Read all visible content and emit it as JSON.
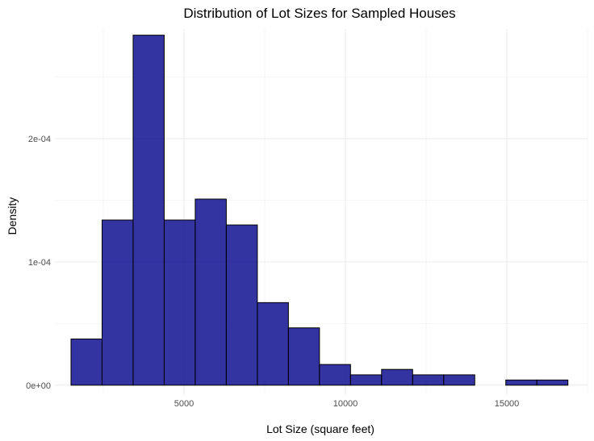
{
  "chart_data": {
    "type": "histogram",
    "title": "Distribution of Lot Sizes for Sampled Houses",
    "xlabel": "Lot Size (square feet)",
    "ylabel": "Density",
    "xlim": [
      1000,
      17500
    ],
    "ylim": [
      -8e-06,
      0.000289
    ],
    "x_ticks": [
      5000,
      10000,
      15000
    ],
    "x_tick_labels": [
      "5000",
      "10000",
      "15000"
    ],
    "y_ticks": [
      0,
      0.0001,
      0.0002
    ],
    "y_tick_labels": [
      "0e+00",
      "1e-04",
      "2e-04"
    ],
    "grid": true,
    "bar_fill": "#00008b",
    "bar_fill_opacity": 0.8,
    "bar_stroke": "#000000",
    "bins": [
      {
        "x0": 1500,
        "x1": 2462,
        "density": 3.75e-05
      },
      {
        "x0": 2462,
        "x1": 3424,
        "density": 0.000134
      },
      {
        "x0": 3424,
        "x1": 4386,
        "density": 0.000284
      },
      {
        "x0": 4386,
        "x1": 5348,
        "density": 0.000134
      },
      {
        "x0": 5348,
        "x1": 6310,
        "density": 0.000151
      },
      {
        "x0": 6310,
        "x1": 7272,
        "density": 0.00013
      },
      {
        "x0": 7272,
        "x1": 8234,
        "density": 6.7e-05
      },
      {
        "x0": 8234,
        "x1": 9196,
        "density": 4.65e-05
      },
      {
        "x0": 9196,
        "x1": 10158,
        "density": 1.68e-05
      },
      {
        "x0": 10158,
        "x1": 11120,
        "density": 8.4e-06
      },
      {
        "x0": 11120,
        "x1": 12082,
        "density": 1.28e-05
      },
      {
        "x0": 12082,
        "x1": 13044,
        "density": 8.4e-06
      },
      {
        "x0": 13044,
        "x1": 14006,
        "density": 8.4e-06
      },
      {
        "x0": 14006,
        "x1": 14968,
        "density": 0
      },
      {
        "x0": 14968,
        "x1": 15930,
        "density": 4.2e-06
      },
      {
        "x0": 15930,
        "x1": 16892,
        "density": 4.2e-06
      }
    ]
  }
}
